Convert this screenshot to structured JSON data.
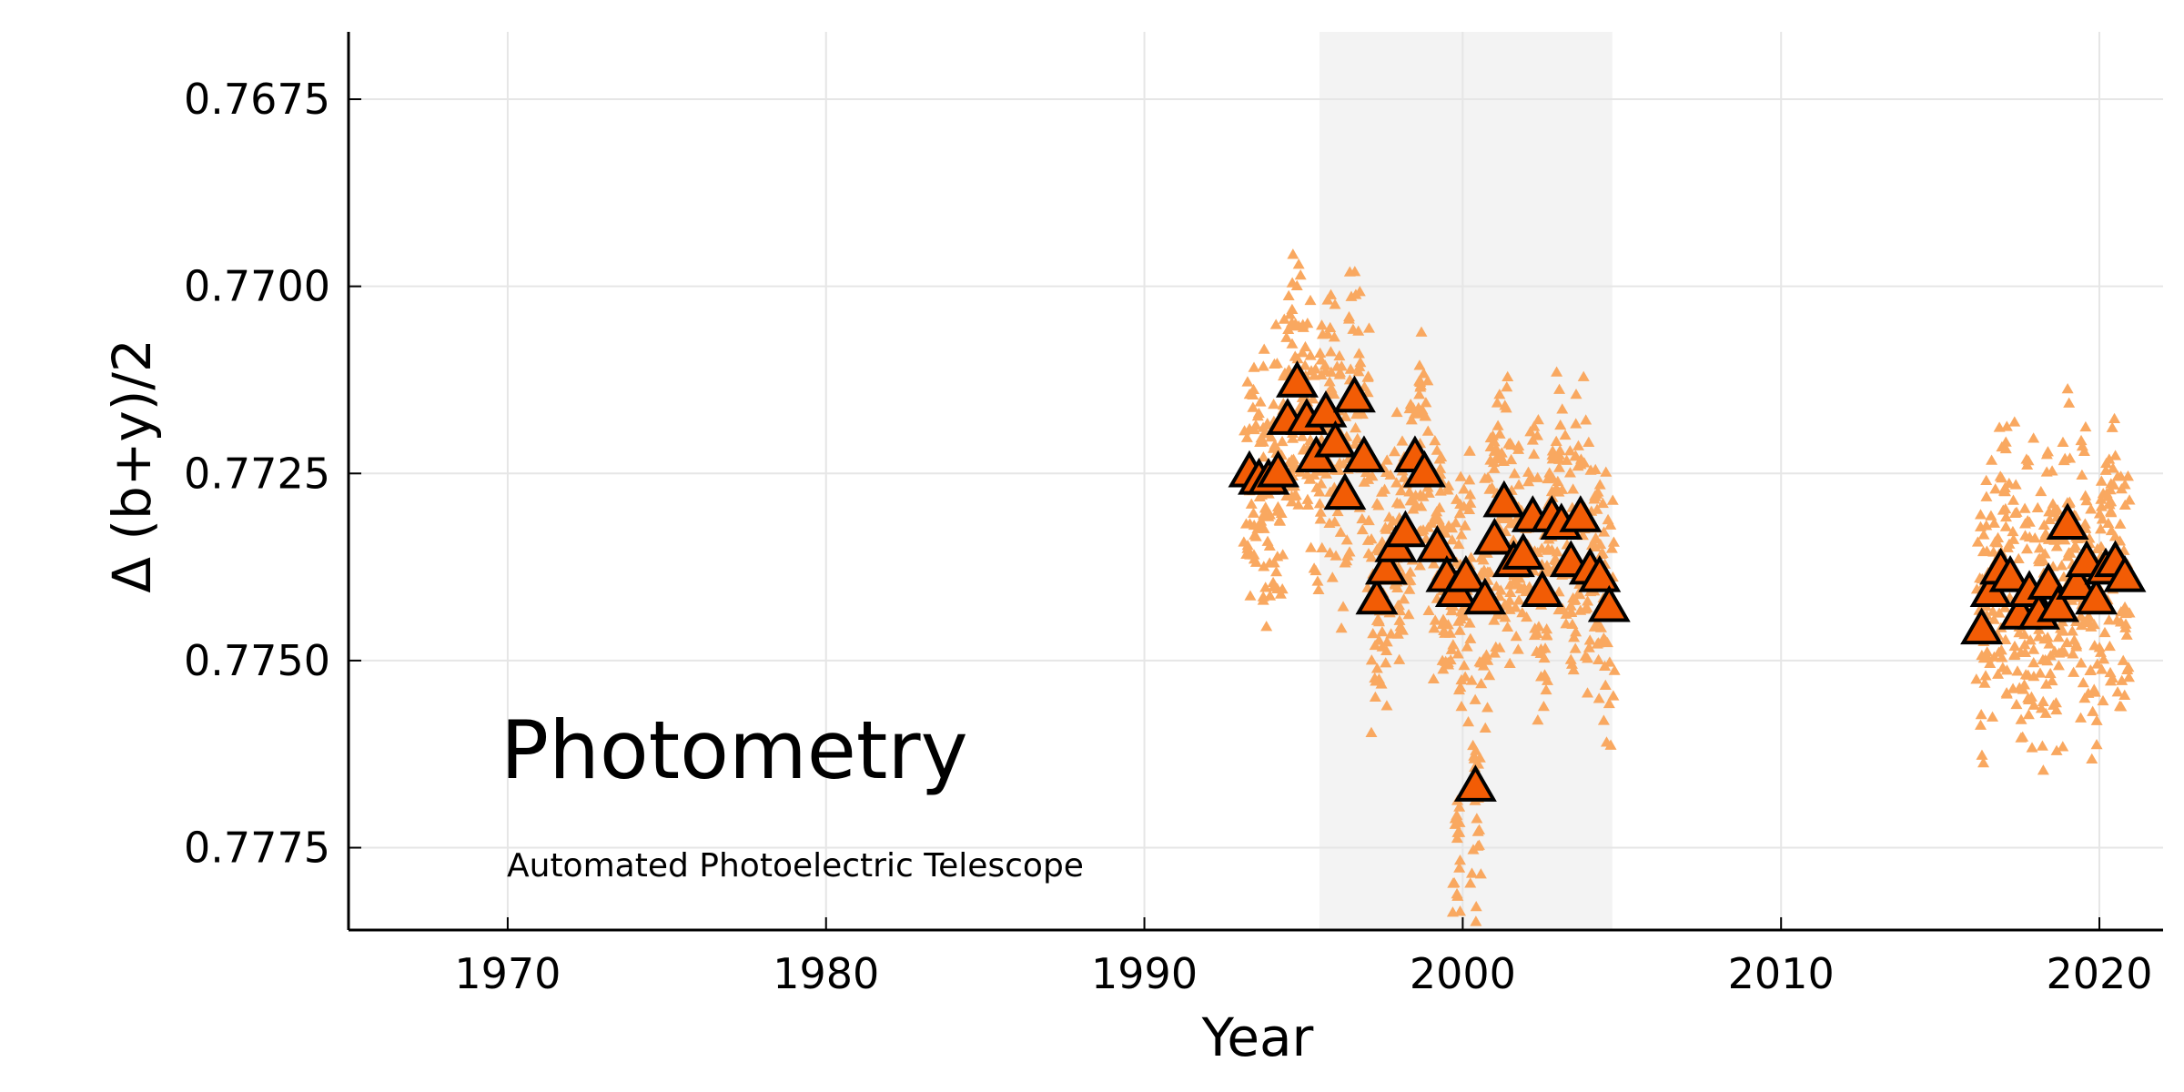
{
  "chart_data": {
    "type": "scatter",
    "xlabel": "Year",
    "ylabel": "Δ (b+y)/2",
    "xlim": [
      1965,
      2022
    ],
    "ylim": [
      0.7786,
      0.7666
    ],
    "y_inverted": true,
    "xticks": [
      1970,
      1980,
      1990,
      2000,
      2010,
      2020
    ],
    "xtick_labels": [
      "1970",
      "1980",
      "1990",
      "2000",
      "2010",
      "2020"
    ],
    "yticks": [
      0.7675,
      0.77,
      0.7725,
      0.775,
      0.7775
    ],
    "ytick_labels": [
      "0.7675",
      "0.7700",
      "0.7725",
      "0.7750",
      "0.7775"
    ],
    "grid": true,
    "shaded_span": [
      1995.5,
      2004.7
    ],
    "colors": {
      "raw": "#f9a860",
      "mean_fill": "#f25c05",
      "mean_edge": "#000000",
      "span": "#f3f3f3",
      "grid": "#e6e6e6",
      "axis": "#000000"
    },
    "annotations": {
      "title": "Photometry",
      "subtitle": "Automated Photoelectric Telescope"
    },
    "series": [
      {
        "kind": "seasonal_means",
        "x": [
          1993.3,
          1993.6,
          1993.9,
          1994.2,
          1994.5,
          1994.8,
          1995.1,
          1995.4,
          1995.7,
          1996.0,
          1996.3,
          1996.6,
          1996.9,
          1997.3,
          1997.6,
          1997.9,
          1998.2,
          1998.5,
          1998.8,
          1999.2,
          1999.5,
          1999.8,
          2000.1,
          2000.4,
          2000.7,
          2001.0,
          2001.3,
          2001.6,
          2001.9,
          2002.2,
          2002.5,
          2002.8,
          2003.1,
          2003.4,
          2003.7,
          2004.0,
          2004.3,
          2004.6,
          2016.3,
          2016.6,
          2016.9,
          2017.2,
          2017.5,
          2017.8,
          2018.1,
          2018.4,
          2018.7,
          2019.0,
          2019.3,
          2019.6,
          2019.9,
          2020.2,
          2020.5,
          2020.8
        ],
        "y": [
          0.7725,
          0.7726,
          0.7726,
          0.7725,
          0.7718,
          0.7713,
          0.7718,
          0.7723,
          0.7717,
          0.7721,
          0.7728,
          0.7715,
          0.7723,
          0.7742,
          0.7738,
          0.7735,
          0.7733,
          0.7723,
          0.7725,
          0.7735,
          0.7739,
          0.7741,
          0.7739,
          0.7767,
          0.7742,
          0.7734,
          0.7729,
          0.7737,
          0.7736,
          0.7731,
          0.7741,
          0.7731,
          0.7732,
          0.7737,
          0.7731,
          0.7738,
          0.7739,
          0.7743,
          0.7746,
          0.7741,
          0.7738,
          0.7739,
          0.7744,
          0.7741,
          0.7744,
          0.774,
          0.7743,
          0.7732,
          0.774,
          0.7737,
          0.7742,
          0.7738,
          0.7737,
          0.7739
        ]
      }
    ]
  }
}
